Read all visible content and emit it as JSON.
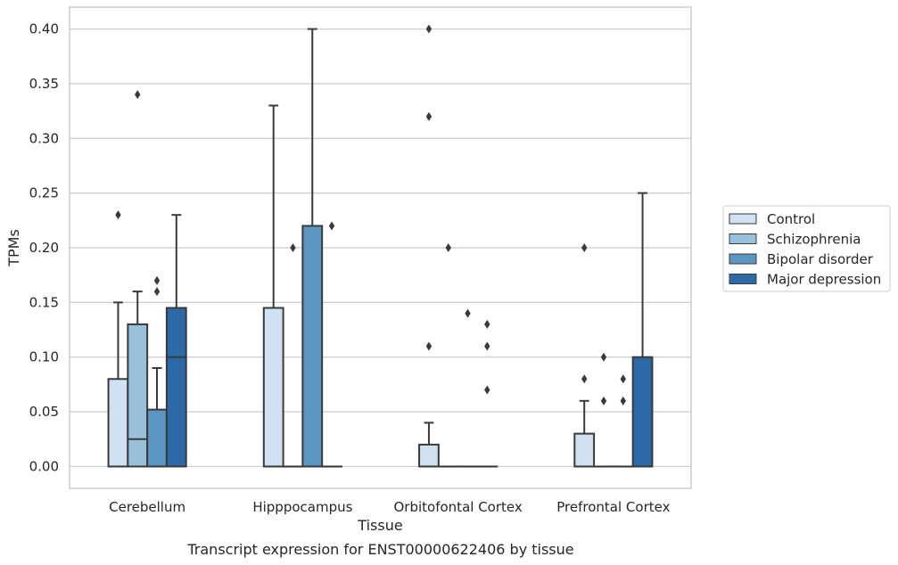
{
  "chart_data": {
    "type": "box",
    "title": "",
    "xlabel": "Tissue",
    "ylabel": "TPMs",
    "caption": "Transcript expression for ENST00000622406 by tissue",
    "ylim": [
      -0.02,
      0.42
    ],
    "yticks": [
      0.0,
      0.05,
      0.1,
      0.15,
      0.2,
      0.25,
      0.3,
      0.35,
      0.4
    ],
    "ytick_labels": [
      "0.00",
      "0.05",
      "0.10",
      "0.15",
      "0.20",
      "0.25",
      "0.30",
      "0.35",
      "0.40"
    ],
    "grid": true,
    "legend_position": "right",
    "categories": [
      "Cerebellum",
      "Hipppocampus",
      "Orbitofontal Cortex",
      "Prefrontal Cortex"
    ],
    "series": [
      {
        "name": "Control",
        "color": "#d0e1f2",
        "boxes": [
          {
            "q1": 0.0,
            "median": 0.0,
            "q3": 0.08,
            "whisker_low": 0.0,
            "whisker_high": 0.15,
            "outliers": [
              0.23
            ]
          },
          {
            "q1": 0.0,
            "median": 0.0,
            "q3": 0.145,
            "whisker_low": 0.0,
            "whisker_high": 0.33,
            "outliers": []
          },
          {
            "q1": 0.0,
            "median": 0.0,
            "q3": 0.02,
            "whisker_low": 0.0,
            "whisker_high": 0.04,
            "outliers": [
              0.11,
              0.32,
              0.4
            ]
          },
          {
            "q1": 0.0,
            "median": 0.0,
            "q3": 0.03,
            "whisker_low": 0.0,
            "whisker_high": 0.06,
            "outliers": [
              0.08,
              0.2
            ]
          }
        ]
      },
      {
        "name": "Schizophrenia",
        "color": "#9ac1dc",
        "boxes": [
          {
            "q1": 0.0,
            "median": 0.025,
            "q3": 0.13,
            "whisker_low": 0.0,
            "whisker_high": 0.16,
            "outliers": [
              0.34
            ]
          },
          {
            "q1": 0.0,
            "median": 0.0,
            "q3": 0.0,
            "whisker_low": 0.0,
            "whisker_high": 0.0,
            "outliers": [
              0.2
            ]
          },
          {
            "q1": 0.0,
            "median": 0.0,
            "q3": 0.0,
            "whisker_low": 0.0,
            "whisker_high": 0.0,
            "outliers": [
              0.2
            ]
          },
          {
            "q1": 0.0,
            "median": 0.0,
            "q3": 0.0,
            "whisker_low": 0.0,
            "whisker_high": 0.0,
            "outliers": [
              0.06,
              0.1
            ]
          }
        ]
      },
      {
        "name": "Bipolar disorder",
        "color": "#5b96c2",
        "boxes": [
          {
            "q1": 0.0,
            "median": 0.0,
            "q3": 0.052,
            "whisker_low": 0.0,
            "whisker_high": 0.09,
            "outliers": [
              0.16,
              0.17
            ]
          },
          {
            "q1": 0.0,
            "median": 0.0,
            "q3": 0.22,
            "whisker_low": 0.0,
            "whisker_high": 0.4,
            "outliers": []
          },
          {
            "q1": 0.0,
            "median": 0.0,
            "q3": 0.0,
            "whisker_low": 0.0,
            "whisker_high": 0.0,
            "outliers": [
              0.14
            ]
          },
          {
            "q1": 0.0,
            "median": 0.0,
            "q3": 0.0,
            "whisker_low": 0.0,
            "whisker_high": 0.0,
            "outliers": [
              0.06,
              0.08
            ]
          }
        ]
      },
      {
        "name": "Major depression",
        "color": "#2b6aa6",
        "boxes": [
          {
            "q1": 0.0,
            "median": 0.1,
            "q3": 0.145,
            "whisker_low": 0.0,
            "whisker_high": 0.23,
            "outliers": []
          },
          {
            "q1": 0.0,
            "median": 0.0,
            "q3": 0.0,
            "whisker_low": 0.0,
            "whisker_high": 0.0,
            "outliers": [
              0.22
            ]
          },
          {
            "q1": 0.0,
            "median": 0.0,
            "q3": 0.0,
            "whisker_low": 0.0,
            "whisker_high": 0.0,
            "outliers": [
              0.07,
              0.11,
              0.13
            ]
          },
          {
            "q1": 0.0,
            "median": 0.0,
            "q3": 0.1,
            "whisker_low": 0.0,
            "whisker_high": 0.25,
            "outliers": []
          }
        ]
      }
    ]
  }
}
